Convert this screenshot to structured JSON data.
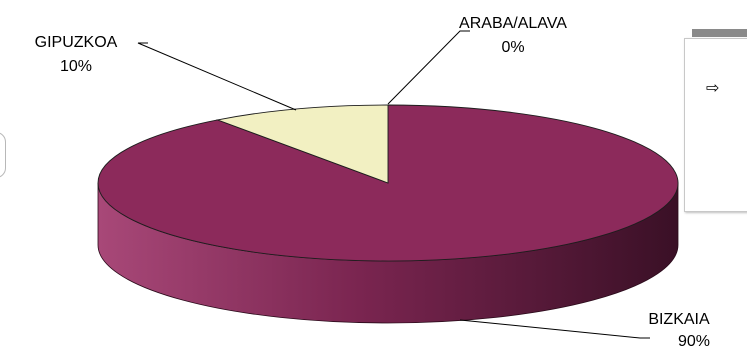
{
  "chart_data": {
    "type": "pie",
    "style": "3d",
    "categories": [
      "BIZKAIA",
      "GIPUZKOA",
      "ARABA/ALAVA"
    ],
    "values": [
      90,
      10,
      0
    ],
    "value_labels": [
      "90%",
      "10%",
      "0%"
    ],
    "colors": [
      "#8c2a5b",
      "#f2f0c2",
      "#b9b9ff"
    ],
    "legend": "right (partially visible)"
  },
  "legend": {
    "arrow_icon": "⇨"
  }
}
